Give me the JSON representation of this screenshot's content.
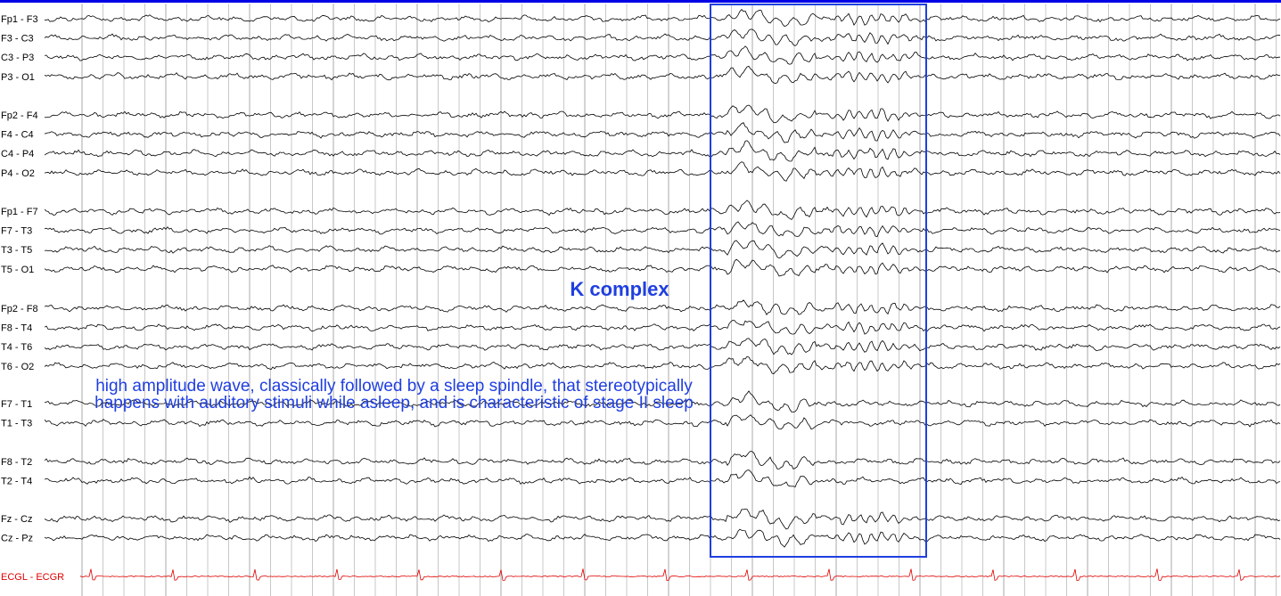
{
  "chart_data": {
    "type": "line",
    "title": "",
    "xlabel": "",
    "ylabel": "",
    "grid": true,
    "colors": {
      "top_bar": "#0000e6",
      "trace": "#000000",
      "ecg": "#e00000",
      "annotation": "#1f3fe0",
      "grid": "#c8c8c8"
    },
    "groups": [
      [
        "Fp1 - F3",
        "F3 - C3",
        "C3 - P3",
        "P3 - O1"
      ],
      [
        "Fp2 - F4",
        "F4 - C4",
        "C4 - P4",
        "P4 - O2"
      ],
      [
        "Fp1 - F7",
        "F7 - T3",
        "T3 - T5",
        "T5 - O1"
      ],
      [
        "Fp2 - F8",
        "F8 - T4",
        "T4 - T6",
        "T6 - O2"
      ],
      [
        "F7 - T1",
        "T1 - T3"
      ],
      [
        "F8 - T2",
        "T2 - T4"
      ],
      [
        "Fz - Cz",
        "Cz - Pz"
      ],
      [
        "ECGL - ECGR"
      ]
    ],
    "annotation": {
      "title": "K complex",
      "description": "high amplitude wave, classically followed by a sleep spindle, that stereotypically happens with auditory stimuli while asleep, and is characteristic of stage II sleep"
    }
  }
}
